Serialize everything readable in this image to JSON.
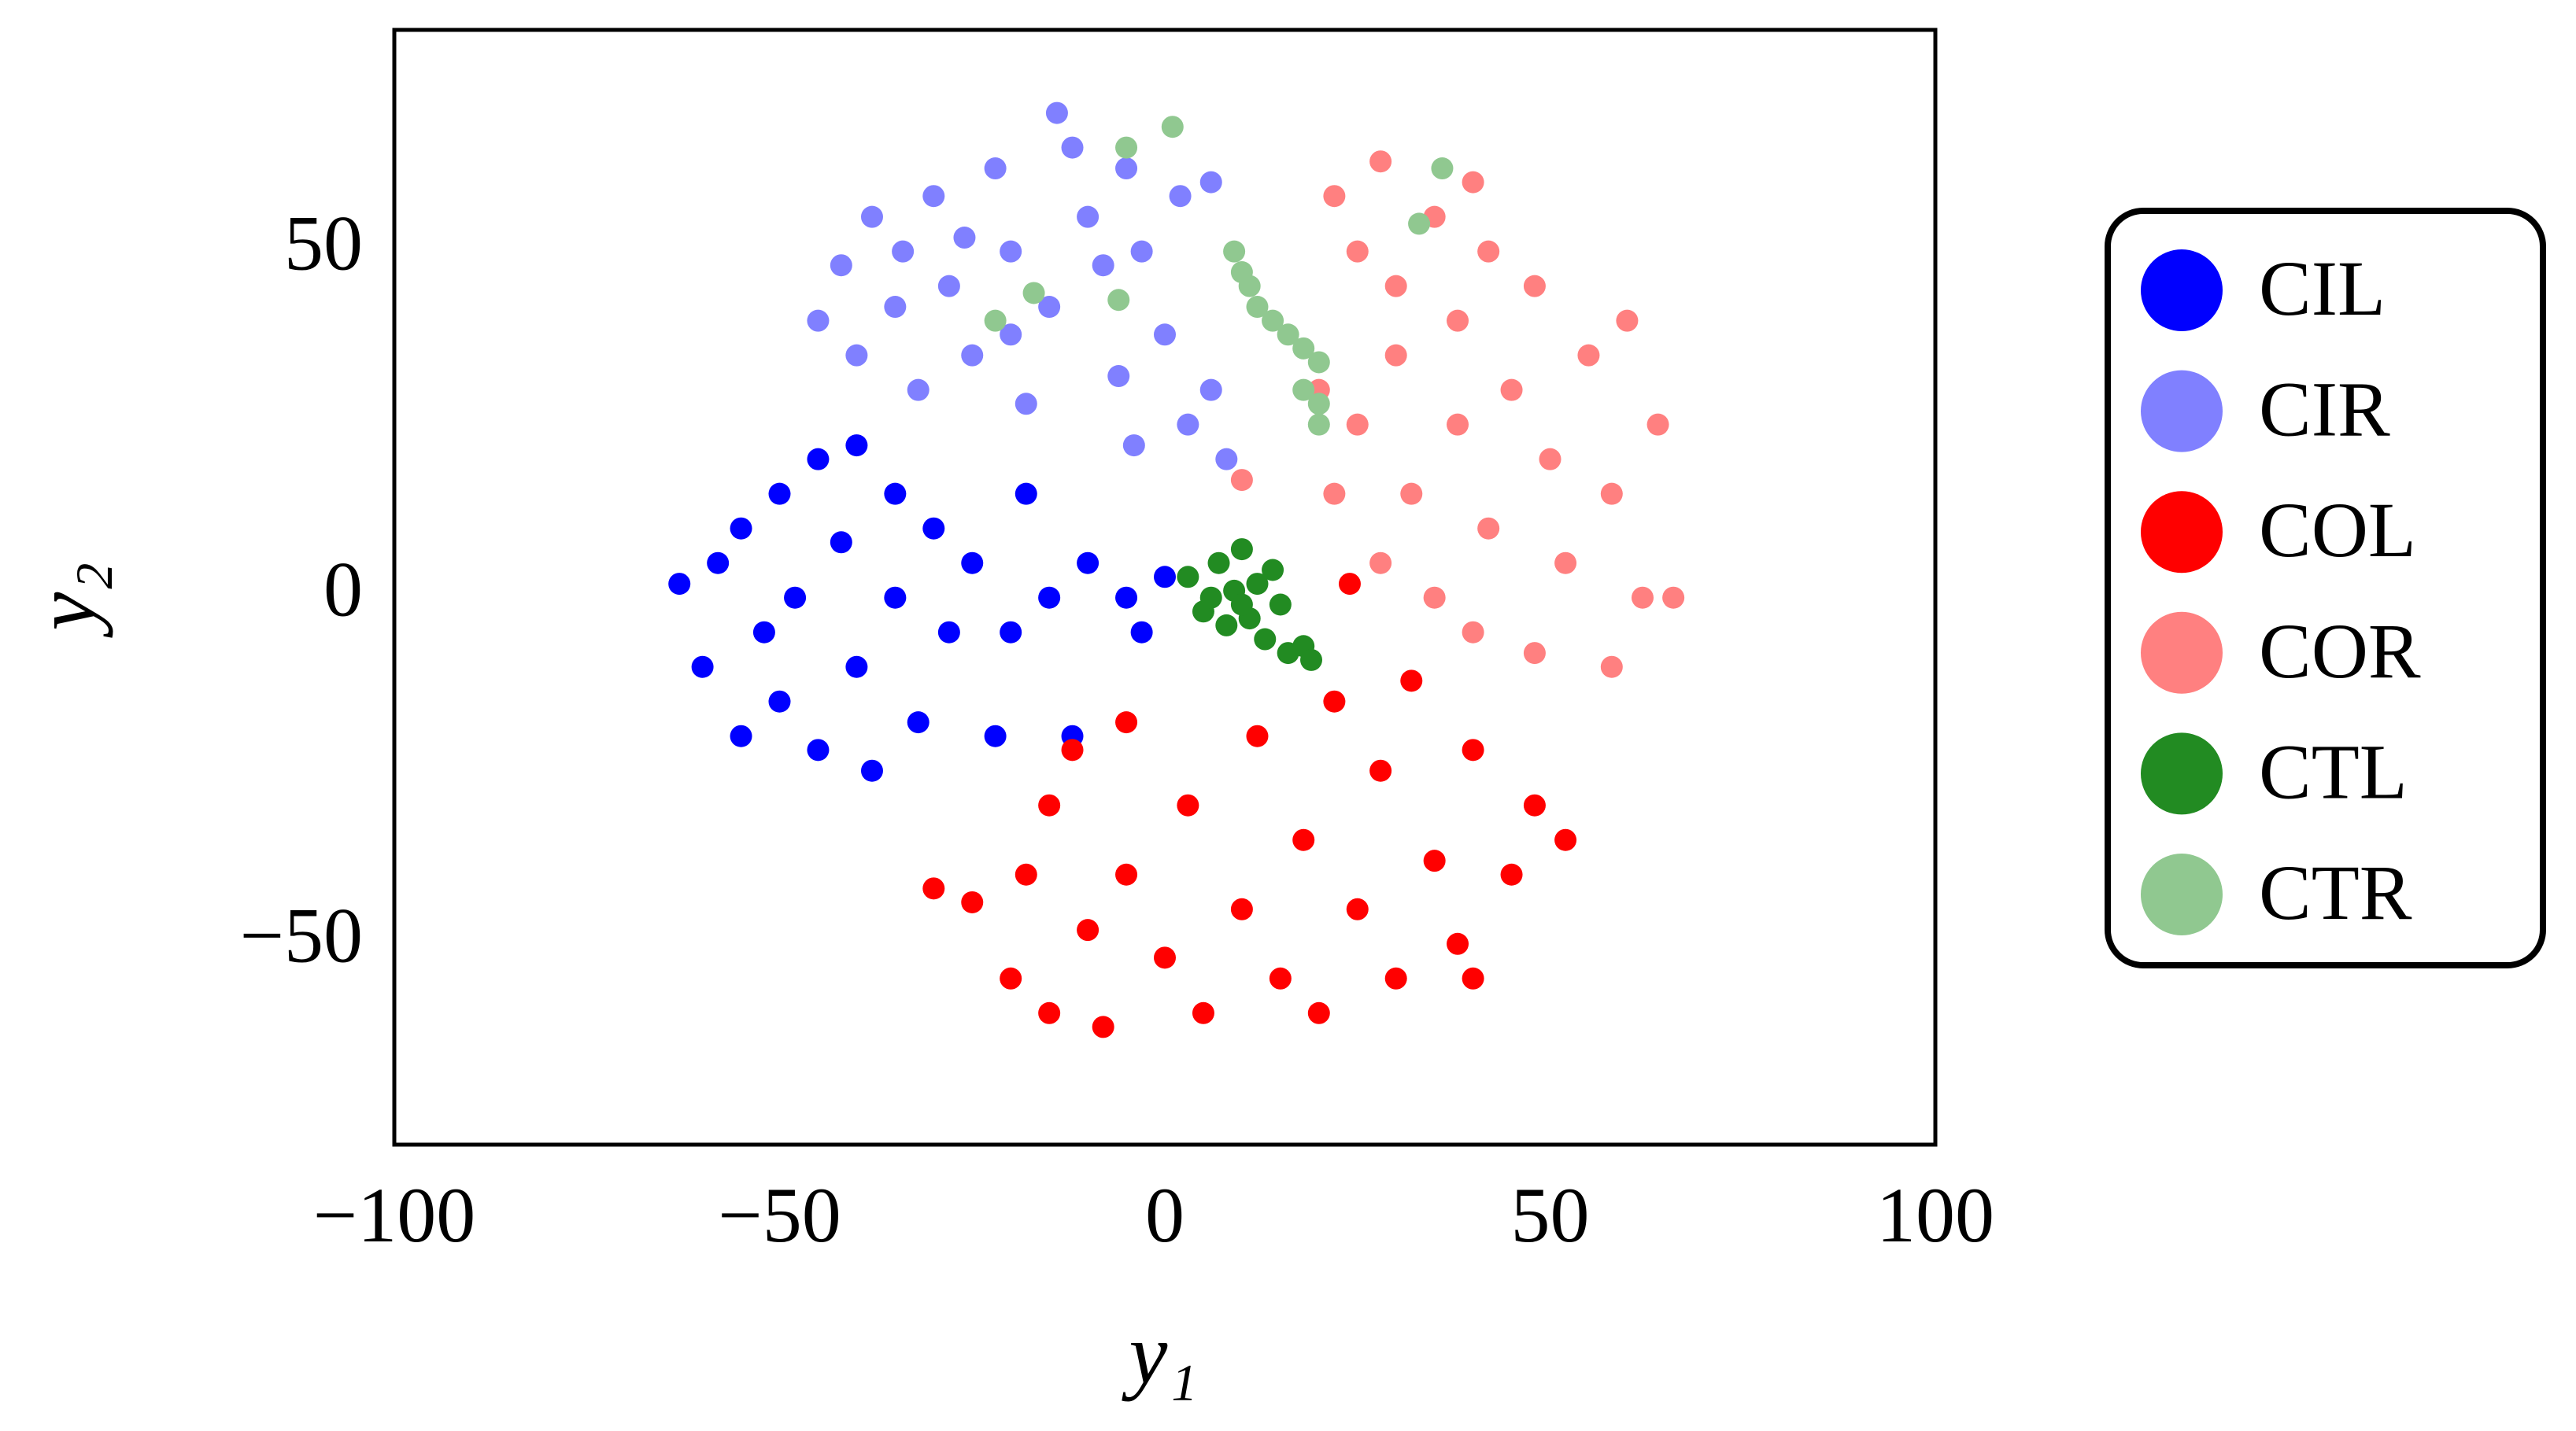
{
  "chart_data": {
    "type": "scatter",
    "xlabel": "y₁",
    "ylabel": "y₂",
    "xlim": [
      -100,
      100
    ],
    "ylim": [
      -79,
      82
    ],
    "xticks": [
      {
        "value": -100,
        "label": "−100"
      },
      {
        "value": -50,
        "label": "−50"
      },
      0,
      50,
      100
    ],
    "yticks": [
      {
        "value": -50,
        "label": "−50"
      },
      0,
      50
    ],
    "grid": false,
    "legend_position": "right",
    "series": [
      {
        "name": "CIL",
        "color": "#0000ff",
        "x": [
          -63,
          -60,
          -58,
          -55,
          -55,
          -52,
          -50,
          -50,
          -48,
          -45,
          -45,
          -42,
          -40,
          -40,
          -38,
          -35,
          -35,
          -32,
          -30,
          -28,
          -25,
          -22,
          -20,
          -15,
          -12,
          -10,
          -5,
          -3,
          0,
          -18
        ],
        "values": [
          2,
          -10,
          5,
          -20,
          10,
          -5,
          15,
          -15,
          0,
          20,
          -22,
          8,
          -10,
          22,
          -25,
          0,
          15,
          -18,
          10,
          -5,
          5,
          -20,
          -5,
          0,
          -20,
          5,
          0,
          -5,
          3,
          15
        ]
      },
      {
        "name": "CIR",
        "color": "#8080ff",
        "x": [
          -45,
          -42,
          -40,
          -38,
          -35,
          -32,
          -30,
          -28,
          -25,
          -22,
          -20,
          -18,
          -15,
          -12,
          -10,
          -8,
          -5,
          -3,
          2,
          6,
          -6,
          -4,
          0,
          3,
          6,
          8,
          -14,
          -20,
          -34,
          -26
        ],
        "values": [
          40,
          48,
          35,
          55,
          42,
          30,
          58,
          45,
          35,
          62,
          50,
          28,
          42,
          65,
          55,
          48,
          62,
          50,
          58,
          60,
          32,
          22,
          38,
          25,
          30,
          20,
          70,
          38,
          50,
          52
        ]
      },
      {
        "name": "COL",
        "color": "#ff0000",
        "x": [
          -30,
          -25,
          -18,
          -15,
          -20,
          -15,
          -10,
          -8,
          -5,
          -5,
          0,
          3,
          5,
          10,
          12,
          15,
          18,
          20,
          22,
          25,
          28,
          30,
          32,
          35,
          38,
          40,
          45,
          48,
          52,
          24,
          40,
          -12
        ],
        "values": [
          -42,
          -44,
          -40,
          -30,
          -55,
          -60,
          -48,
          -62,
          -40,
          -18,
          -52,
          -30,
          -60,
          -45,
          -20,
          -55,
          -35,
          -60,
          -15,
          -45,
          -25,
          -55,
          -12,
          -38,
          -50,
          -22,
          -40,
          -30,
          -35,
          2,
          -55,
          -22
        ]
      },
      {
        "name": "COR",
        "color": "#ff8080",
        "x": [
          22,
          25,
          28,
          30,
          35,
          38,
          40,
          42,
          20,
          22,
          25,
          28,
          30,
          32,
          35,
          38,
          40,
          42,
          45,
          48,
          50,
          52,
          55,
          58,
          60,
          62,
          64,
          66,
          58,
          10,
          48
        ],
        "values": [
          58,
          50,
          63,
          45,
          55,
          40,
          60,
          50,
          30,
          15,
          25,
          5,
          35,
          15,
          0,
          25,
          -5,
          10,
          30,
          -8,
          20,
          5,
          35,
          15,
          40,
          0,
          25,
          0,
          -10,
          17,
          45
        ]
      },
      {
        "name": "CTL",
        "color": "#228b22",
        "x": [
          3,
          5,
          7,
          8,
          9,
          10,
          11,
          12,
          13,
          14,
          15,
          16,
          18,
          19,
          6,
          10
        ],
        "values": [
          3,
          -2,
          5,
          -4,
          1,
          7,
          -3,
          2,
          -6,
          4,
          -1,
          -8,
          -7,
          -9,
          0,
          -1
        ]
      },
      {
        "name": "CTR",
        "color": "#90c890",
        "x": [
          9,
          10,
          11,
          12,
          14,
          16,
          18,
          20,
          18,
          20,
          1,
          -5,
          36,
          33,
          -17,
          -22,
          -6,
          20
        ],
        "values": [
          50,
          47,
          45,
          42,
          40,
          38,
          36,
          34,
          30,
          28,
          68,
          65,
          62,
          54,
          44,
          40,
          43,
          25
        ]
      }
    ]
  }
}
